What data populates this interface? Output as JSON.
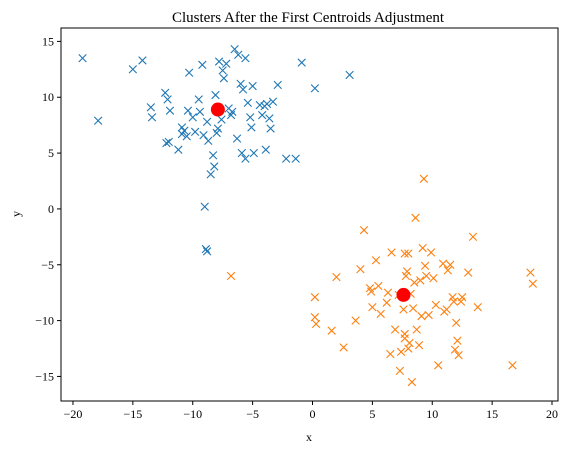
{
  "chart_data": {
    "type": "scatter",
    "title": "Clusters After the First Centroids Adjustment",
    "xlabel": "x",
    "ylabel": "y",
    "xlim": [
      -21,
      20.5
    ],
    "ylim": [
      -17.2,
      16.2
    ],
    "xticks": [
      -20,
      -15,
      -10,
      -5,
      0,
      5,
      10,
      15,
      20
    ],
    "yticks": [
      -15,
      -10,
      -5,
      0,
      5,
      10,
      15
    ],
    "grid": false,
    "legend": "none",
    "series": [
      {
        "marker": "x",
        "color": "#1f77b4",
        "points": [
          [
            -19.2,
            13.5
          ],
          [
            -17.9,
            7.9
          ],
          [
            -15.0,
            12.5
          ],
          [
            -14.2,
            13.3
          ],
          [
            -13.5,
            9.1
          ],
          [
            -13.4,
            8.2
          ],
          [
            -12.3,
            10.4
          ],
          [
            -12.1,
            9.8
          ],
          [
            -11.9,
            8.8
          ],
          [
            -12.2,
            5.9
          ],
          [
            -12.0,
            6.0
          ],
          [
            -11.2,
            5.3
          ],
          [
            -10.9,
            7.3
          ],
          [
            -10.9,
            6.7
          ],
          [
            -10.7,
            7.0
          ],
          [
            -10.5,
            6.5
          ],
          [
            -10.4,
            8.8
          ],
          [
            -10.3,
            12.2
          ],
          [
            -10.0,
            8.2
          ],
          [
            -9.8,
            6.9
          ],
          [
            -9.5,
            9.8
          ],
          [
            -9.4,
            8.7
          ],
          [
            -9.2,
            12.9
          ],
          [
            -9.1,
            6.6
          ],
          [
            -8.8,
            7.8
          ],
          [
            -8.5,
            3.1
          ],
          [
            -8.3,
            4.8
          ],
          [
            -8.2,
            3.8
          ],
          [
            -8.0,
            6.8
          ],
          [
            -7.9,
            7.2
          ],
          [
            -7.8,
            13.2
          ],
          [
            -7.5,
            12.4
          ],
          [
            -7.4,
            11.7
          ],
          [
            -7.2,
            13.0
          ],
          [
            -8.1,
            10.2
          ],
          [
            -6.7,
            8.7
          ],
          [
            -6.5,
            14.3
          ],
          [
            -6.2,
            13.8
          ],
          [
            -6.0,
            11.2
          ],
          [
            -6.3,
            6.3
          ],
          [
            -5.8,
            10.7
          ],
          [
            -5.6,
            13.5
          ],
          [
            -5.4,
            9.5
          ],
          [
            -5.2,
            8.2
          ],
          [
            -5.1,
            7.3
          ],
          [
            -5.0,
            11.0
          ],
          [
            -4.9,
            5.0
          ],
          [
            -5.6,
            4.5
          ],
          [
            -4.4,
            9.3
          ],
          [
            -4.2,
            8.4
          ],
          [
            -4.0,
            9.2
          ],
          [
            -3.8,
            9.4
          ],
          [
            -3.6,
            8.1
          ],
          [
            -3.5,
            7.2
          ],
          [
            -3.3,
            9.6
          ],
          [
            -3.9,
            5.3
          ],
          [
            -2.9,
            11.1
          ],
          [
            -2.2,
            4.5
          ],
          [
            -1.4,
            4.5
          ],
          [
            -0.9,
            13.1
          ],
          [
            0.2,
            10.8
          ],
          [
            3.1,
            12.0
          ],
          [
            -7.6,
            8.0
          ],
          [
            -7.0,
            9.0
          ],
          [
            -6.8,
            8.4
          ],
          [
            -9.0,
            0.2
          ],
          [
            -8.9,
            -3.6
          ],
          [
            -8.8,
            -3.8
          ],
          [
            -8.7,
            6.1
          ],
          [
            -5.9,
            5.0
          ]
        ]
      },
      {
        "marker": "x",
        "color": "#ff7f0e",
        "points": [
          [
            -6.8,
            -6.0
          ],
          [
            0.2,
            -7.9
          ],
          [
            0.2,
            -9.7
          ],
          [
            0.3,
            -10.3
          ],
          [
            1.6,
            -10.9
          ],
          [
            2.0,
            -6.1
          ],
          [
            2.6,
            -12.4
          ],
          [
            3.6,
            -10.0
          ],
          [
            4.0,
            -5.4
          ],
          [
            4.3,
            -1.9
          ],
          [
            4.8,
            -7.1
          ],
          [
            4.9,
            -7.4
          ],
          [
            5.0,
            -8.8
          ],
          [
            5.5,
            -6.9
          ],
          [
            5.7,
            -9.4
          ],
          [
            6.2,
            -8.4
          ],
          [
            6.6,
            -3.9
          ],
          [
            6.9,
            -10.8
          ],
          [
            7.2,
            -7.7
          ],
          [
            7.4,
            -12.8
          ],
          [
            7.6,
            -9.0
          ],
          [
            7.7,
            -11.2
          ],
          [
            7.7,
            -4.0
          ],
          [
            7.8,
            -6.0
          ],
          [
            7.9,
            -5.6
          ],
          [
            8.0,
            -4.0
          ],
          [
            8.1,
            -12.0
          ],
          [
            8.2,
            -7.6
          ],
          [
            8.4,
            -8.9
          ],
          [
            8.5,
            -6.6
          ],
          [
            8.6,
            -0.8
          ],
          [
            8.7,
            -10.8
          ],
          [
            8.9,
            -12.2
          ],
          [
            9.0,
            -6.4
          ],
          [
            9.1,
            -9.6
          ],
          [
            9.2,
            -3.5
          ],
          [
            9.3,
            2.7
          ],
          [
            9.4,
            -5.1
          ],
          [
            9.7,
            -9.5
          ],
          [
            9.9,
            -3.9
          ],
          [
            10.1,
            -6.2
          ],
          [
            10.3,
            -8.6
          ],
          [
            10.5,
            -14.0
          ],
          [
            10.9,
            -4.9
          ],
          [
            11.0,
            -9.2
          ],
          [
            11.2,
            -9.0
          ],
          [
            11.5,
            -5.0
          ],
          [
            11.7,
            -7.9
          ],
          [
            11.9,
            -12.6
          ],
          [
            12.0,
            -10.2
          ],
          [
            12.1,
            -11.8
          ],
          [
            12.2,
            -13.1
          ],
          [
            12.4,
            -8.3
          ],
          [
            12.5,
            -7.9
          ],
          [
            13.0,
            -5.7
          ],
          [
            13.4,
            -2.5
          ],
          [
            13.8,
            -8.8
          ],
          [
            16.7,
            -14.0
          ],
          [
            18.2,
            -5.7
          ],
          [
            18.4,
            -6.7
          ],
          [
            6.5,
            -13.0
          ],
          [
            7.3,
            -14.5
          ],
          [
            8.3,
            -15.5
          ],
          [
            7.7,
            -11.6
          ],
          [
            11.3,
            -5.5
          ],
          [
            6.3,
            -7.5
          ],
          [
            9.5,
            -6.0
          ],
          [
            8.0,
            -12.5
          ],
          [
            11.8,
            -8.3
          ],
          [
            5.3,
            -4.6
          ]
        ]
      },
      {
        "marker": "o",
        "color": "#ff0000",
        "points": [
          [
            -7.9,
            8.9
          ],
          [
            7.6,
            -7.7
          ]
        ]
      }
    ]
  }
}
